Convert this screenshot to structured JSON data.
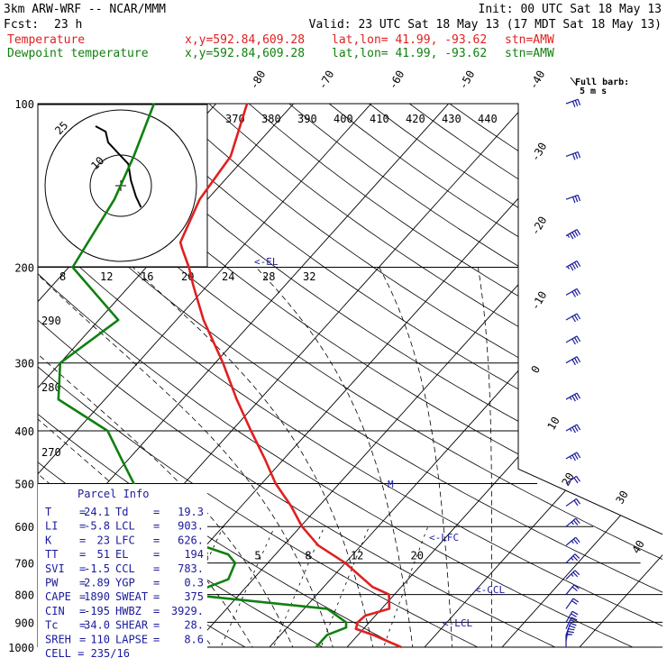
{
  "header": {
    "model": "3km ARW-WRF -- NCAR/MMM",
    "init": "Init: 00 UTC Sat 18 May 13",
    "fcst_label": "Fcst:",
    "fcst_value": "23 h",
    "valid": "Valid: 23 UTC Sat 18 May 13 (17 MDT Sat 18 May 13)",
    "temp_line": {
      "name": "Temperature",
      "xy": "x,y=592.84,609.28",
      "latlon": "lat,lon= 41.99, -93.62",
      "stn": "stn=AMW",
      "color": "#e02020"
    },
    "dew_line": {
      "name": "Dewpoint temperature",
      "xy": "x,y=592.84,609.28",
      "latlon": "lat,lon= 41.99, -93.62",
      "stn": "stn=AMW",
      "color": "#108010"
    }
  },
  "barb_legend": {
    "line1": "Full barb:",
    "line2": "5 m s"
  },
  "parcel": {
    "title": "Parcel Info",
    "rows": [
      {
        "l": "T",
        "lv": "24.1",
        "r": "Td",
        "rv": "19.3"
      },
      {
        "l": "LI",
        "lv": "-5.8",
        "r": "LCL",
        "rv": "903."
      },
      {
        "l": "K",
        "lv": "23",
        "r": "LFC",
        "rv": "626."
      },
      {
        "l": "TT",
        "lv": "51",
        "r": "EL",
        "rv": "194"
      },
      {
        "l": "SVI",
        "lv": "-1.5",
        "r": "CCL",
        "rv": "783."
      },
      {
        "l": "PW",
        "lv": "2.89",
        "r": "YGP",
        "rv": "0.3"
      },
      {
        "l": "CAPE",
        "lv": "1890",
        "r": "SWEAT",
        "rv": "375"
      },
      {
        "l": "CIN",
        "lv": "-195",
        "r": "HWBZ",
        "rv": "3929."
      },
      {
        "l": "Tc",
        "lv": "34.0",
        "r": "SHEAR",
        "rv": "28."
      },
      {
        "l": "SREH",
        "lv": "110",
        "r": "LAPSE",
        "rv": "8.6"
      }
    ],
    "cell": "CELL = 235/16"
  },
  "levels": {
    "el": "<-EL",
    "lfc": "<-LFC",
    "ccl": "<-CCL",
    "lcl": "<-LCL",
    "melting": "M"
  },
  "hodograph": {
    "units": "kts",
    "ring_labels": [
      "25",
      "10"
    ],
    "speed_ticks": [
      "8",
      "12",
      "16",
      "20",
      "24",
      "28",
      "32"
    ]
  },
  "mixing_ratio_labels": [
    "2",
    "3",
    "5",
    "8",
    "12",
    "20"
  ],
  "theta_labels": [
    "370",
    "380",
    "390",
    "400",
    "410",
    "420",
    "430",
    "440"
  ],
  "thetae_labels": [
    "290",
    "280",
    "270"
  ],
  "chart_data": {
    "type": "line",
    "title": "",
    "x_axis": "temperature (C), skewed",
    "y_axis": "pressure (hPa), log scale",
    "pressure_ticks": [
      100,
      200,
      300,
      400,
      500,
      600,
      700,
      800,
      900,
      1000
    ],
    "temp_ticks_top": [
      -80,
      -70,
      -60,
      -50,
      -40
    ],
    "temp_ticks_right": [
      -30,
      -20,
      -10,
      0,
      10,
      20,
      30,
      40
    ],
    "series": [
      {
        "name": "Temperature",
        "color": "#e02020",
        "points": [
          [
            1000,
            27.0
          ],
          [
            950,
            22.0
          ],
          [
            925,
            19.0
          ],
          [
            900,
            18.5
          ],
          [
            875,
            18.7
          ],
          [
            850,
            21.0
          ],
          [
            800,
            19.3
          ],
          [
            775,
            16.3
          ],
          [
            700,
            10.0
          ],
          [
            650,
            4.5
          ],
          [
            600,
            0.2
          ],
          [
            550,
            -3.6
          ],
          [
            500,
            -8.2
          ],
          [
            450,
            -12.5
          ],
          [
            400,
            -17.5
          ],
          [
            350,
            -23.0
          ],
          [
            300,
            -29.0
          ],
          [
            250,
            -36.5
          ],
          [
            215,
            -42.0
          ],
          [
            200,
            -44.5
          ],
          [
            185,
            -47.5
          ],
          [
            180,
            -48.5
          ],
          [
            150,
            -51.0
          ],
          [
            125,
            -52.0
          ],
          [
            100,
            -56.0
          ]
        ]
      },
      {
        "name": "Dewpoint temperature",
        "color": "#108010",
        "points": [
          [
            1000,
            16.0
          ],
          [
            950,
            16.0
          ],
          [
            920,
            17.6
          ],
          [
            900,
            17.0
          ],
          [
            850,
            13.0
          ],
          [
            800,
            -6.6
          ],
          [
            750,
            -3.2
          ],
          [
            700,
            -4.2
          ],
          [
            675,
            -6.1
          ],
          [
            600,
            -20.0
          ],
          [
            550,
            -24.5
          ],
          [
            500,
            -26.5
          ],
          [
            450,
            -31.0
          ],
          [
            400,
            -36.0
          ],
          [
            350,
            -46.0
          ],
          [
            300,
            -50.0
          ],
          [
            250,
            -47.5
          ],
          [
            200,
            -59.5
          ],
          [
            150,
            -62.0
          ],
          [
            125,
            -64.5
          ],
          [
            100,
            -68.0
          ]
        ]
      }
    ],
    "wind_barbs": [
      {
        "p": 1000,
        "dir": 180,
        "kt": 10
      },
      {
        "p": 975,
        "dir": 190,
        "kt": 15
      },
      {
        "p": 950,
        "dir": 200,
        "kt": 20
      },
      {
        "p": 925,
        "dir": 205,
        "kt": 20
      },
      {
        "p": 900,
        "dir": 210,
        "kt": 20
      },
      {
        "p": 850,
        "dir": 215,
        "kt": 20
      },
      {
        "p": 800,
        "dir": 220,
        "kt": 20
      },
      {
        "p": 750,
        "dir": 225,
        "kt": 15
      },
      {
        "p": 700,
        "dir": 225,
        "kt": 15
      },
      {
        "p": 650,
        "dir": 230,
        "kt": 15
      },
      {
        "p": 600,
        "dir": 230,
        "kt": 15
      },
      {
        "p": 550,
        "dir": 235,
        "kt": 20
      },
      {
        "p": 500,
        "dir": 235,
        "kt": 20
      },
      {
        "p": 450,
        "dir": 240,
        "kt": 25
      },
      {
        "p": 400,
        "dir": 240,
        "kt": 25
      },
      {
        "p": 350,
        "dir": 240,
        "kt": 25
      },
      {
        "p": 300,
        "dir": 240,
        "kt": 30
      },
      {
        "p": 275,
        "dir": 240,
        "kt": 30
      },
      {
        "p": 250,
        "dir": 240,
        "kt": 30
      },
      {
        "p": 225,
        "dir": 240,
        "kt": 30
      },
      {
        "p": 200,
        "dir": 240,
        "kt": 35
      },
      {
        "p": 175,
        "dir": 240,
        "kt": 35
      },
      {
        "p": 150,
        "dir": 250,
        "kt": 30
      },
      {
        "p": 125,
        "dir": 250,
        "kt": 30
      },
      {
        "p": 100,
        "dir": 250,
        "kt": 30
      }
    ],
    "hodograph_trace": [
      [
        -10,
        11
      ],
      [
        -6,
        10
      ],
      [
        -5,
        8
      ],
      [
        -1,
        6
      ],
      [
        3,
        4
      ],
      [
        4,
        1
      ],
      [
        6,
        -2
      ],
      [
        8,
        -4
      ]
    ]
  }
}
